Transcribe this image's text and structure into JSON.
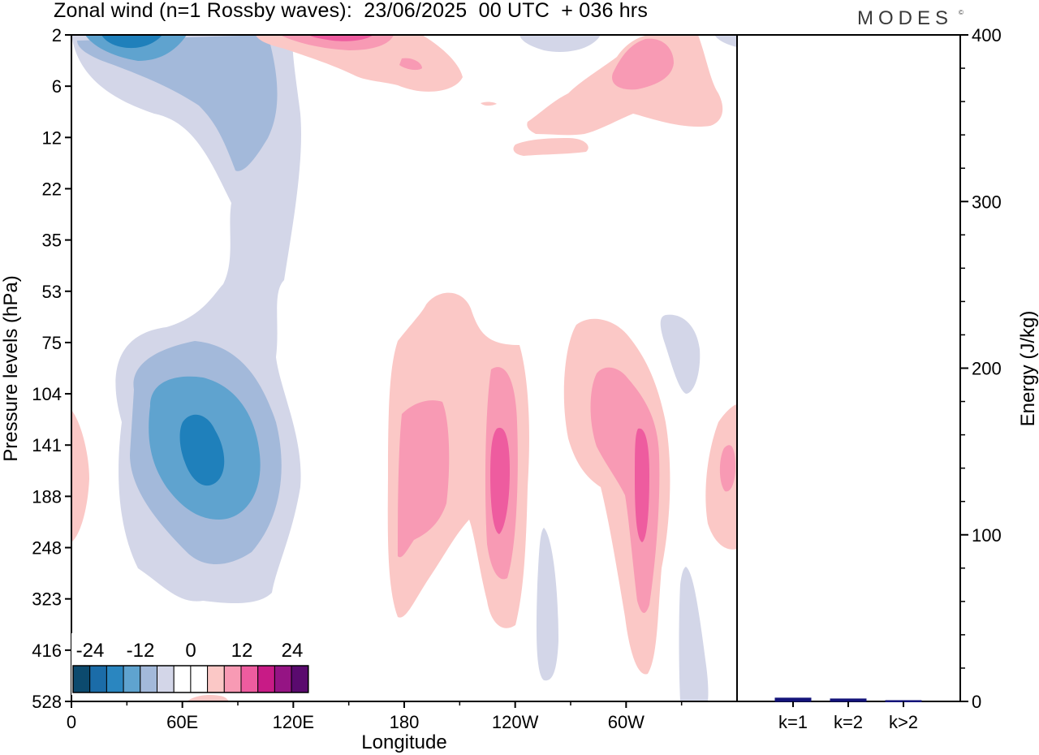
{
  "header": {
    "title": "Zonal wind (n=1 Rossby waves):  23/06/2025  00 UTC  + 036 hrs",
    "logo": "MODES",
    "logo_mark": "©"
  },
  "chart_data": [
    {
      "type": "heatmap",
      "title": "Zonal wind (n=1 Rossby waves):  23/06/2025  00 UTC  + 036 hrs",
      "xlabel": "Longitude",
      "ylabel": "Pressure levels (hPa)",
      "x_ticks": [
        "0",
        "60E",
        "120E",
        "180",
        "120W",
        "60W"
      ],
      "x_tick_values": [
        0,
        60,
        120,
        180,
        240,
        300
      ],
      "xlim": [
        0,
        360
      ],
      "y_ticks": [
        "2",
        "6",
        "12",
        "22",
        "35",
        "53",
        "75",
        "104",
        "141",
        "188",
        "248",
        "323",
        "416",
        "528"
      ],
      "colorbar": {
        "ticks": [
          "-24",
          "-12",
          "0",
          "12",
          "24"
        ],
        "levels": [
          -30,
          -25,
          -20,
          -15,
          -10,
          -5,
          0,
          5,
          10,
          15,
          20,
          25,
          30
        ],
        "colors": [
          "#0c4a6e",
          "#1b6ca8",
          "#2a86c0",
          "#5fa3cf",
          "#a3b9da",
          "#d3d6e8",
          "#ffffff",
          "#ffffff",
          "#fbc8c6",
          "#f89ab4",
          "#ee5c9f",
          "#c81b86",
          "#951484",
          "#5a0a6e"
        ]
      },
      "features": [
        {
          "sign": "negative",
          "lon_range": [
            25,
            110
          ],
          "p_range": [
            60,
            330
          ],
          "min_level": -20
        },
        {
          "sign": "negative",
          "lon_range": [
            0,
            125
          ],
          "p_range": [
            2,
            60
          ],
          "min_level": -20
        },
        {
          "sign": "positive",
          "lon_range": [
            175,
            200
          ],
          "p_range": [
            70,
            310
          ],
          "max_level": 10
        },
        {
          "sign": "positive",
          "lon_range": [
            225,
            240
          ],
          "p_range": [
            110,
            280
          ],
          "max_level": 15
        },
        {
          "sign": "positive",
          "lon_range": [
            285,
            315
          ],
          "p_range": [
            80,
            330
          ],
          "max_level": 15
        },
        {
          "sign": "positive",
          "lon_range": [
            350,
            360
          ],
          "p_range": [
            100,
            240
          ],
          "max_level": 10
        },
        {
          "sign": "positive",
          "lon_range": [
            100,
            340
          ],
          "p_range": [
            2,
            15
          ],
          "max_level": 15
        }
      ]
    },
    {
      "type": "bar",
      "ylabel": "Energy (J/kg)",
      "categories": [
        "k=1",
        "k=2",
        "k>2"
      ],
      "values": [
        2,
        1.5,
        0.5
      ],
      "ylim": [
        0,
        400
      ],
      "y_ticks": [
        0,
        100,
        200,
        300,
        400
      ],
      "bar_color": "#14147a"
    }
  ]
}
